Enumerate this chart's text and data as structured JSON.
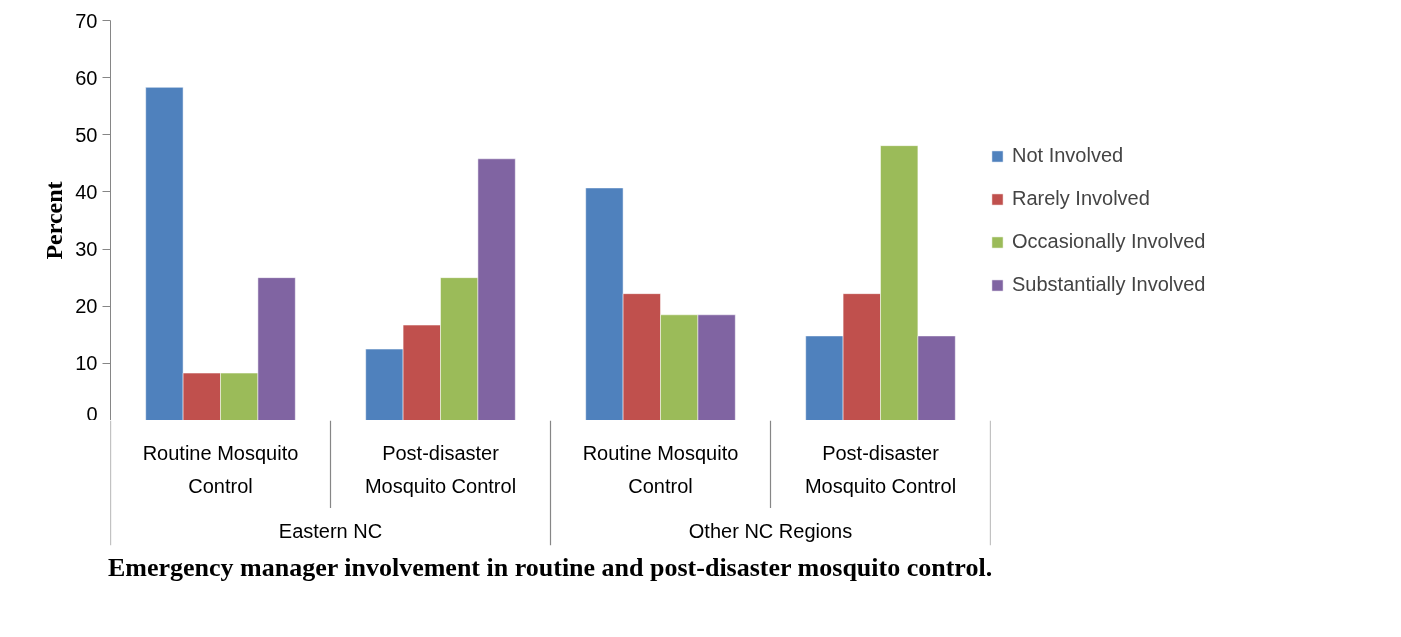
{
  "chart_data": {
    "type": "bar",
    "title": "Emergency manager involvement in routine and post-disaster mosquito control.",
    "ylabel": "Percent",
    "categories": [
      "Routine Mosquito Control",
      "Post-disaster Mosquito Control",
      "Routine Mosquito Control",
      "Post-disaster Mosquito Control"
    ],
    "annotations": [
      "Eastern NC",
      "Other NC Regions"
    ],
    "ylim": [
      0,
      70
    ],
    "yticks": [
      0,
      10,
      20,
      30,
      40,
      50,
      60,
      70
    ],
    "grid": false,
    "legend": "right",
    "series": [
      {
        "name": "Not Involved",
        "color": "#4f81bd",
        "values": [
          58.3,
          12.5,
          40.7,
          14.8
        ]
      },
      {
        "name": "Rarely Involved",
        "color": "#c0504d",
        "values": [
          8.3,
          16.7,
          22.2,
          22.2
        ]
      },
      {
        "name": "Occasionally Involved",
        "color": "#9bbb59",
        "values": [
          8.3,
          25,
          18.5,
          48.1
        ]
      },
      {
        "name": "Substantially Involved",
        "color": "#8064a2",
        "values": [
          25,
          45.8,
          18.5,
          14.8
        ]
      }
    ]
  }
}
